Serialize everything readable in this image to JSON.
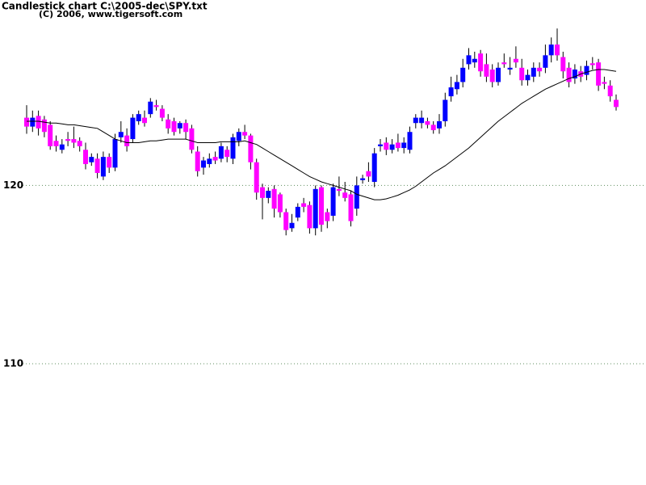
{
  "chart_data": {
    "type": "candlestick",
    "title": "Candlestick chart C:\\2005-dec\\SPY.txt",
    "subtitle": "(C) 2006, www.tigersoft.com",
    "categories": [
      null,
      null,
      null,
      null,
      null,
      null,
      null,
      null,
      null,
      null,
      null,
      null,
      null,
      null,
      null,
      null,
      null,
      null,
      null,
      null,
      null,
      null,
      null,
      null,
      null,
      null,
      null,
      null,
      null,
      null,
      null,
      null,
      null,
      null,
      null,
      null,
      null,
      null,
      null,
      null,
      null,
      null,
      null,
      null,
      null,
      null,
      null,
      null,
      null,
      null,
      null,
      null,
      null,
      null,
      null,
      null,
      null,
      null,
      null,
      null,
      null,
      null,
      null,
      null,
      null,
      null,
      null,
      null,
      null,
      null,
      null,
      null,
      null,
      null,
      null,
      null,
      null,
      null,
      null,
      null,
      null,
      null,
      null,
      null,
      null,
      null,
      null,
      null,
      null,
      null,
      null,
      null,
      null,
      null,
      null,
      null,
      null,
      null,
      null,
      null,
      null
    ],
    "open": [
      123.8,
      123.3,
      123.9,
      123.7,
      123.4,
      122.5,
      122.0,
      122.6,
      122.6,
      122.5,
      122.0,
      121.3,
      121.5,
      120.5,
      121.6,
      121.0,
      122.7,
      122.8,
      122.6,
      123.6,
      123.8,
      124.0,
      124.5,
      124.3,
      123.7,
      123.6,
      123.2,
      123.5,
      123.2,
      121.9,
      121.0,
      121.2,
      121.6,
      121.5,
      122.0,
      121.5,
      122.5,
      123.0,
      122.8,
      121.3,
      119.9,
      119.3,
      119.8,
      119.5,
      118.5,
      117.6,
      118.2,
      119.0,
      118.9,
      117.6,
      119.9,
      118.5,
      118.3,
      119.8,
      119.6,
      119.5,
      118.7,
      120.3,
      120.8,
      120.2,
      122.2,
      122.4,
      122.0,
      122.4,
      122.1,
      122.0,
      123.5,
      123.5,
      123.6,
      123.4,
      123.2,
      123.6,
      125.0,
      125.4,
      125.8,
      126.8,
      126.9,
      127.4,
      126.8,
      126.5,
      125.8,
      126.9,
      126.5,
      127.1,
      126.6,
      125.9,
      126.1,
      126.6,
      126.6,
      127.3,
      127.9,
      127.2,
      126.6,
      126.0,
      126.4,
      126.2,
      126.85,
      126.9,
      125.8,
      125.6,
      124.8
    ],
    "high": [
      124.5,
      124.2,
      124.2,
      123.9,
      123.6,
      122.8,
      122.6,
      123.0,
      123.3,
      122.7,
      122.4,
      121.8,
      121.8,
      121.9,
      121.8,
      122.9,
      123.6,
      123.2,
      124.0,
      124.2,
      124.2,
      124.9,
      124.8,
      124.5,
      124.0,
      123.8,
      123.6,
      123.7,
      123.4,
      122.2,
      121.6,
      121.8,
      121.9,
      122.4,
      122.2,
      122.9,
      123.2,
      123.4,
      122.9,
      121.5,
      120.1,
      119.9,
      120.0,
      119.6,
      118.7,
      118.4,
      119.0,
      119.3,
      119.1,
      120.0,
      120.0,
      118.7,
      120.1,
      120.5,
      120.2,
      119.7,
      120.5,
      120.6,
      121.3,
      122.1,
      122.6,
      122.7,
      122.6,
      122.9,
      122.7,
      123.3,
      124.0,
      124.2,
      123.8,
      123.6,
      124.0,
      125.2,
      126.1,
      126.2,
      127.1,
      127.7,
      127.5,
      127.6,
      127.4,
      126.8,
      126.9,
      127.4,
      127.2,
      127.8,
      127.1,
      126.5,
      126.9,
      126.9,
      127.9,
      128.3,
      128.8,
      127.5,
      126.9,
      126.8,
      126.7,
      127.0,
      127.2,
      127.1,
      126.1,
      125.9,
      125.1
    ],
    "low": [
      122.9,
      123.0,
      122.8,
      122.7,
      122.0,
      121.9,
      121.8,
      122.2,
      122.1,
      121.9,
      120.9,
      121.1,
      120.4,
      120.3,
      120.7,
      120.8,
      122.4,
      121.9,
      122.4,
      123.4,
      123.3,
      123.8,
      124.2,
      123.6,
      122.9,
      122.8,
      122.9,
      122.6,
      121.8,
      120.5,
      120.6,
      121.0,
      121.2,
      121.3,
      121.3,
      121.2,
      122.2,
      122.6,
      120.9,
      119.2,
      118.1,
      119.0,
      118.2,
      118.2,
      117.2,
      117.4,
      118.0,
      118.5,
      117.3,
      117.2,
      117.4,
      117.6,
      118.0,
      119.4,
      119.1,
      117.7,
      118.3,
      120.1,
      120.2,
      119.9,
      121.9,
      121.7,
      121.8,
      121.9,
      121.8,
      121.8,
      123.2,
      123.2,
      123.2,
      122.9,
      122.9,
      123.3,
      124.7,
      125.1,
      125.5,
      126.5,
      126.6,
      126.1,
      125.8,
      125.5,
      125.6,
      126.6,
      126.2,
      126.6,
      125.6,
      125.6,
      125.8,
      126.1,
      126.3,
      126.9,
      127.0,
      126.0,
      125.5,
      125.7,
      125.8,
      125.9,
      126.5,
      125.3,
      125.4,
      124.7,
      124.2
    ],
    "close": [
      123.3,
      123.8,
      123.2,
      123.0,
      122.2,
      122.2,
      122.3,
      122.5,
      122.4,
      122.2,
      121.2,
      121.6,
      120.7,
      121.6,
      121.0,
      122.6,
      123.0,
      122.2,
      123.8,
      124.0,
      123.5,
      124.7,
      124.4,
      123.8,
      123.2,
      123.0,
      123.5,
      123.0,
      122.0,
      120.8,
      121.4,
      121.5,
      121.4,
      122.2,
      121.6,
      122.7,
      123.0,
      122.8,
      121.3,
      119.6,
      119.3,
      119.7,
      118.7,
      118.5,
      117.5,
      117.9,
      118.8,
      118.8,
      117.6,
      119.8,
      117.8,
      118.0,
      119.9,
      119.7,
      119.3,
      118.0,
      120.0,
      120.4,
      120.5,
      121.8,
      122.3,
      122.0,
      122.3,
      122.1,
      122.4,
      123.0,
      123.8,
      123.8,
      123.4,
      123.1,
      123.6,
      124.8,
      125.5,
      125.8,
      126.6,
      127.3,
      127.1,
      126.4,
      126.1,
      125.8,
      126.6,
      126.8,
      126.6,
      126.9,
      125.9,
      126.2,
      126.6,
      126.4,
      127.3,
      127.9,
      127.3,
      126.4,
      125.8,
      126.5,
      126.1,
      126.7,
      126.75,
      125.6,
      125.7,
      125.0,
      124.4
    ],
    "up_color": "#0000ff",
    "down_color": "#ff00ff",
    "moving_average": {
      "color": "#000000",
      "values": [
        123.6,
        123.6,
        123.6,
        123.55,
        123.5,
        123.5,
        123.45,
        123.4,
        123.4,
        123.35,
        123.3,
        123.25,
        123.2,
        123.0,
        122.8,
        122.6,
        122.5,
        122.4,
        122.4,
        122.4,
        122.45,
        122.5,
        122.5,
        122.55,
        122.6,
        122.6,
        122.6,
        122.6,
        122.5,
        122.4,
        122.4,
        122.4,
        122.4,
        122.45,
        122.45,
        122.45,
        122.45,
        122.5,
        122.4,
        122.3,
        122.1,
        121.9,
        121.7,
        121.5,
        121.3,
        121.1,
        120.9,
        120.7,
        120.5,
        120.35,
        120.2,
        120.1,
        120.0,
        119.9,
        119.8,
        119.7,
        119.5,
        119.4,
        119.3,
        119.2,
        119.2,
        119.25,
        119.35,
        119.45,
        119.6,
        119.75,
        119.95,
        120.2,
        120.45,
        120.7,
        120.9,
        121.1,
        121.35,
        121.6,
        121.85,
        122.1,
        122.4,
        122.7,
        123.0,
        123.3,
        123.6,
        123.85,
        124.1,
        124.35,
        124.6,
        124.8,
        125.0,
        125.2,
        125.4,
        125.55,
        125.7,
        125.85,
        126.0,
        126.1,
        126.25,
        126.35,
        126.45,
        126.5,
        126.5,
        126.45,
        126.4
      ]
    },
    "ylim": [
      103.2,
      130.4
    ],
    "yticks": [
      110,
      120
    ],
    "grid": true,
    "grid_color": "#5f8f5f"
  }
}
